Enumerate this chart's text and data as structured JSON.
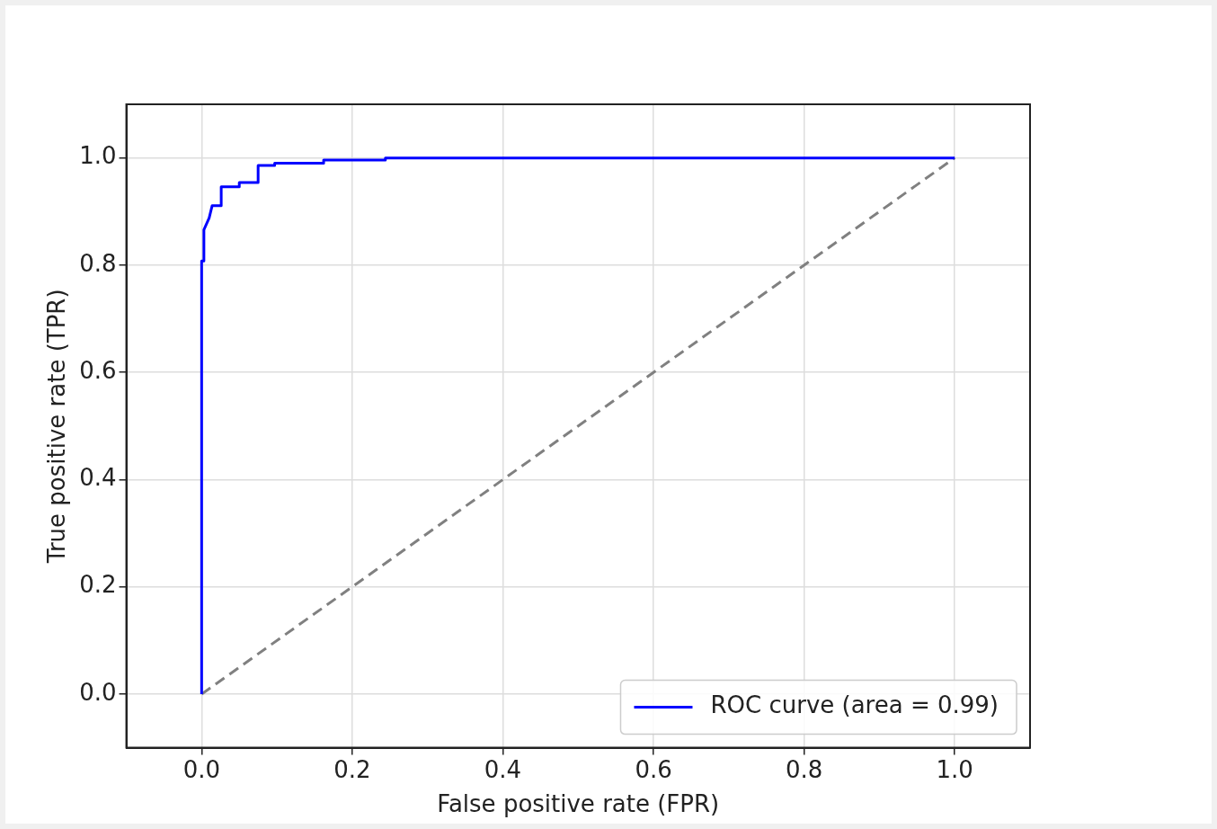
{
  "chart_data": {
    "type": "line",
    "xlabel": "False positive rate (FPR)",
    "ylabel": "True positive rate (TPR)",
    "xlim": [
      -0.1,
      1.1
    ],
    "ylim": [
      -0.1,
      1.1
    ],
    "xticks": [
      {
        "value": 0,
        "label": "0.0"
      },
      0.2,
      0.4,
      0.6,
      0.8,
      {
        "value": 1,
        "label": "1.0"
      }
    ],
    "yticks": [
      {
        "value": 0,
        "label": "0.0"
      },
      0.2,
      0.4,
      0.6,
      0.8,
      {
        "value": 1,
        "label": "1.0"
      }
    ],
    "grid": true,
    "legend": "bottom right",
    "marker": "none",
    "series": [
      {
        "name": "ROC curve (area = 0.99)",
        "color": "#0000ff",
        "line_style": "solid",
        "x": [
          0,
          0,
          0.003,
          0.003,
          0.01,
          0.014,
          0.026,
          0.026,
          0.05,
          0.05,
          0.075,
          0.075,
          0.097,
          0.097,
          0.162,
          0.162,
          0.244,
          0.244,
          1
        ],
        "values": [
          0,
          0.808,
          0.808,
          0.866,
          0.888,
          0.911,
          0.911,
          0.946,
          0.946,
          0.954,
          0.954,
          0.986,
          0.986,
          0.99,
          0.99,
          0.996,
          0.996,
          1,
          1
        ]
      },
      {
        "color": "#808080",
        "line_style": "dashed",
        "x": [
          0,
          1
        ],
        "values": [
          0,
          1
        ]
      }
    ]
  }
}
